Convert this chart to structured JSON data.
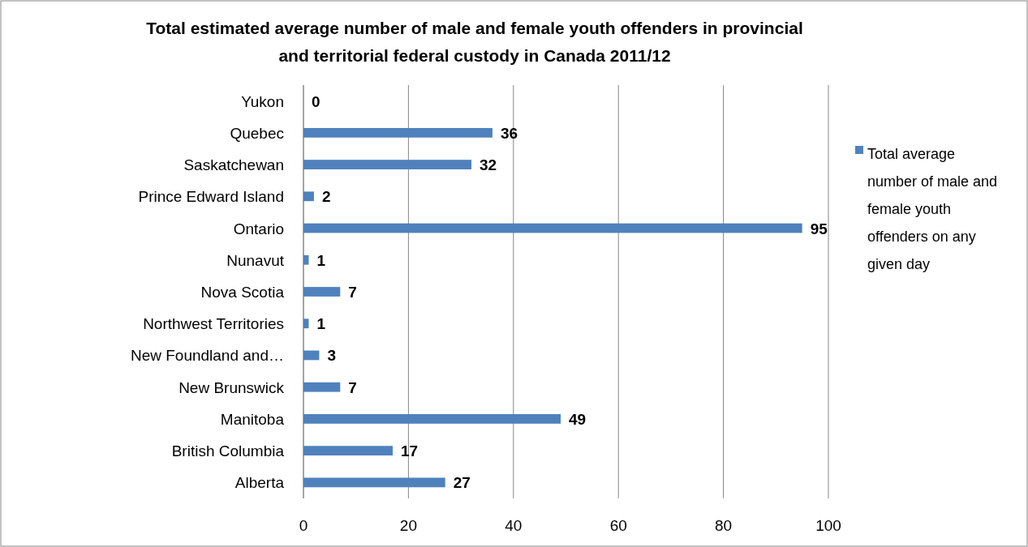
{
  "chart_data": {
    "type": "bar",
    "orientation": "horizontal",
    "title": "Total estimated average number of male and female youth offenders in provincial and territorial federal custody in Canada 2011/12",
    "categories": [
      "Yukon",
      "Quebec",
      "Saskatchewan",
      "Prince Edward Island",
      "Ontario",
      "Nunavut",
      "Nova Scotia",
      "Northwest Territories",
      "New Foundland and…",
      "New Brunswick",
      "Manitoba",
      "British Columbia",
      "Alberta"
    ],
    "series": [
      {
        "name": "Total average number of male and female youth offenders on any given day",
        "color": "#4f81bd",
        "values": [
          0,
          36,
          32,
          2,
          95,
          1,
          7,
          1,
          3,
          7,
          49,
          17,
          27
        ]
      }
    ],
    "xlim": [
      0,
      100
    ],
    "xticks": [
      0,
      20,
      40,
      60,
      80,
      100
    ],
    "grid": "x",
    "legend": "right",
    "data_labels": true
  }
}
